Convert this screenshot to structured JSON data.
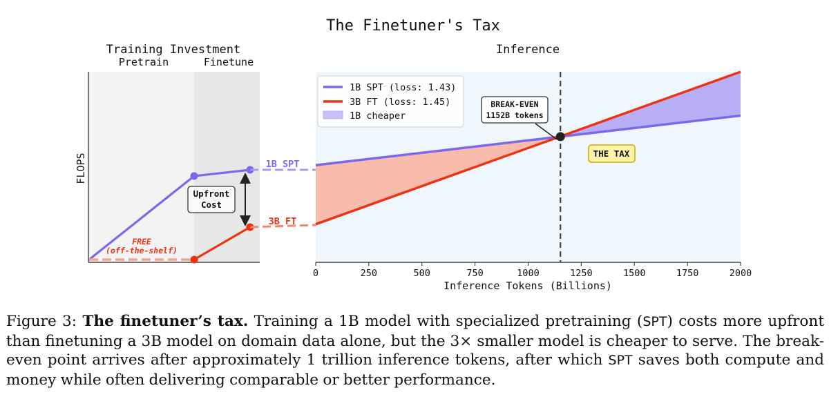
{
  "figure": {
    "title": "The Finetuner's Tax",
    "left_panel": {
      "title": "Training Investment",
      "pretrain_label": "Pretrain",
      "finetune_label": "Finetune",
      "ylabel": "FLOPS",
      "upfront_label_line1": "Upfront",
      "upfront_label_line2": "Cost",
      "free_label_line1": "FREE",
      "free_label_line2": "(off-the-shelf)",
      "spt_label": "1B SPT",
      "ft_label": "3B FT"
    },
    "right_panel": {
      "title": "Inference",
      "breakeven_line1": "BREAK-EVEN",
      "breakeven_line2": "1152B tokens",
      "tax_label": "THE TAX"
    }
  },
  "chart_data": {
    "type": "line",
    "title": "Inference",
    "xlabel": "Inference Tokens (Billions)",
    "ylabel": "FLOPS",
    "xlim": [
      0,
      2000
    ],
    "ylim": [
      0,
      1
    ],
    "xticks": [
      0,
      250,
      500,
      750,
      1000,
      1250,
      1500,
      1750,
      2000
    ],
    "break_even_x": 1152,
    "series": [
      {
        "name": "1B SPT (loss: 1.43)",
        "color": "#7b68ee",
        "x": [
          0,
          2000
        ],
        "y": [
          0.51,
          0.77
        ]
      },
      {
        "name": "3B FT (loss: 1.45)",
        "color": "#ee3314",
        "x": [
          0,
          2000
        ],
        "y": [
          0.2,
          1.0
        ]
      }
    ],
    "legend": [
      {
        "label": "1B SPT (loss: 1.43)",
        "kind": "line",
        "color": "#7b68ee"
      },
      {
        "label": "3B FT (loss: 1.45)",
        "kind": "line",
        "color": "#ee3314"
      },
      {
        "label": "1B cheaper",
        "kind": "patch",
        "color": "#c9c2f5"
      }
    ],
    "legend_position": "top-left"
  },
  "caption": {
    "prefix": "Figure 3: ",
    "bold": "The finetuner’s tax.",
    "p1": " Training a 1B model with specialized pretraining (",
    "abbr1": "SPT",
    "p2": ") costs more upfront than finetuning a 3B model on domain data alone, but the 3× smaller model is cheaper to serve. The break-even point arrives after approximately 1 trillion inference tokens, after which ",
    "abbr2": "SPT",
    "p3": " saves both compute and money while often delivering comparable or better performance."
  }
}
